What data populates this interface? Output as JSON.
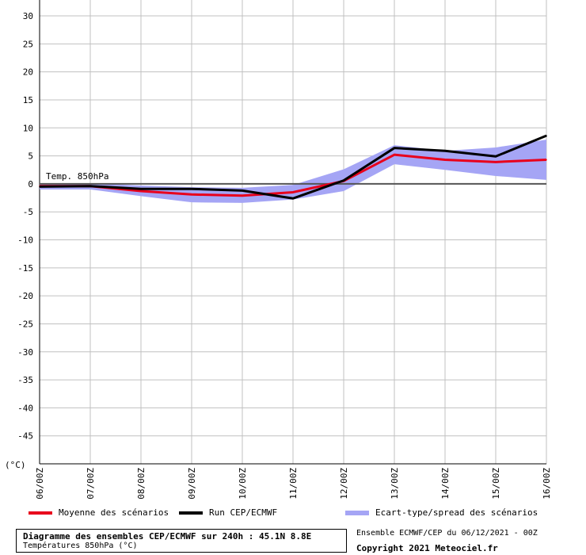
{
  "chart_data": {
    "type": "line",
    "title": "Diagramme des ensembles CEP/ECMWF sur 240h : 45.1N 8.8E",
    "subtitle": "Températures 850hPa (°C)",
    "ylabel": "(°C)",
    "inner_label": "Temp. 850hPa",
    "ylim": [
      -50,
      30
    ],
    "yticks": [
      30,
      25,
      20,
      15,
      10,
      5,
      0,
      -5,
      -10,
      -15,
      -20,
      -25,
      -30,
      -35,
      -40,
      -45
    ],
    "x": [
      "06/00Z",
      "07/00Z",
      "08/00Z",
      "09/00Z",
      "10/00Z",
      "11/00Z",
      "12/00Z",
      "13/00Z",
      "14/00Z",
      "15/00Z",
      "16/00Z"
    ],
    "grid": true,
    "legend_position": "bottom",
    "series": [
      {
        "name": "Moyenne des scénarios",
        "color": "#e8001c",
        "values": [
          -0.4,
          -0.4,
          -1.3,
          -1.9,
          -2.1,
          -1.5,
          0.5,
          5.2,
          4.3,
          3.9,
          4.3
        ]
      },
      {
        "name": "Run CEP/ECMWF",
        "color": "#000000",
        "values": [
          -0.5,
          -0.4,
          -0.9,
          -0.9,
          -1.2,
          -2.6,
          0.6,
          6.4,
          5.9,
          4.9,
          8.6
        ]
      }
    ],
    "band": {
      "name": "Ecart-type/spread des scénarios",
      "color": "#a5a5f5",
      "upper": [
        0.1,
        0.1,
        -0.3,
        -0.6,
        -0.7,
        -0.2,
        2.6,
        6.9,
        5.9,
        6.5,
        7.9
      ],
      "lower": [
        -1.0,
        -1.0,
        -2.2,
        -3.3,
        -3.4,
        -2.8,
        -1.3,
        3.5,
        2.5,
        1.4,
        0.7
      ]
    }
  },
  "footer": {
    "title": "Diagramme des ensembles CEP/ECMWF sur 240h : 45.1N 8.8E",
    "subtitle": "Températures 850hPa (°C)",
    "run_info": "Ensemble ECMWF/CEP du 06/12/2021 - 00Z",
    "copyright": "Copyright 2021 Meteociel.fr"
  }
}
